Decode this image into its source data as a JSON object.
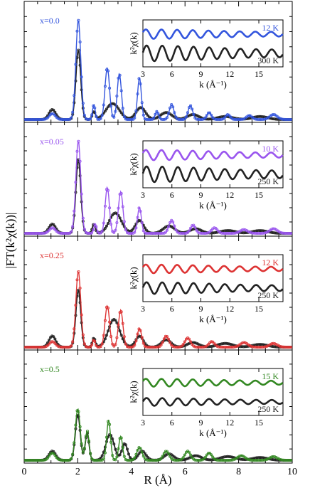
{
  "figure": {
    "ylabel": "|FT(k²χ(k))|",
    "xlabel": "R (Å)",
    "inset_ylabel": "k²χ(k)",
    "inset_xlabel": "k (Å⁻¹)"
  },
  "chart_data": [
    {
      "type": "line",
      "panel": "x=0.0",
      "label": "x=0.0",
      "color": "#3355dd",
      "xlim": [
        0,
        10
      ],
      "xticks": [
        0,
        2,
        4,
        6,
        8,
        10
      ],
      "series": [
        {
          "role": "low-T",
          "color": "#3355dd",
          "peaks": [
            [
              1.05,
              0.06,
              0.16
            ],
            [
              2.02,
              1.0,
              0.13
            ],
            [
              2.6,
              0.15,
              0.07
            ],
            [
              3.1,
              0.52,
              0.12
            ],
            [
              3.55,
              0.46,
              0.11
            ],
            [
              4.3,
              0.42,
              0.1
            ],
            [
              4.95,
              0.08,
              0.09
            ],
            [
              5.5,
              0.15,
              0.12
            ],
            [
              6.2,
              0.14,
              0.12
            ],
            [
              6.9,
              0.07,
              0.12
            ],
            [
              7.6,
              0.05,
              0.12
            ],
            [
              8.4,
              0.04,
              0.15
            ],
            [
              9.3,
              0.05,
              0.2
            ]
          ]
        },
        {
          "role": "high-T",
          "color": "#222222",
          "peaks": [
            [
              1.05,
              0.1,
              0.18
            ],
            [
              2.02,
              0.7,
              0.13
            ],
            [
              2.6,
              0.08,
              0.08
            ],
            [
              3.3,
              0.16,
              0.35
            ],
            [
              4.35,
              0.12,
              0.25
            ],
            [
              5.3,
              0.07,
              0.3
            ],
            [
              6.3,
              0.05,
              0.3
            ],
            [
              7.5,
              0.03,
              0.4
            ],
            [
              8.8,
              0.03,
              0.4
            ]
          ]
        }
      ],
      "inset": {
        "xlabel": "k (Å⁻¹)",
        "ylabel": "k²χ(k)",
        "xticks": [
          3,
          6,
          9,
          12,
          15
        ],
        "xlim": [
          3,
          17.5
        ],
        "series": [
          {
            "name": "12 K",
            "color": "#3355dd",
            "amplitude": 0.6
          },
          {
            "name": "300 K",
            "color": "#222222",
            "amplitude": 1.0
          }
        ]
      }
    },
    {
      "type": "line",
      "panel": "x=0.05",
      "label": "x=0.05",
      "color": "#9955ee",
      "xlim": [
        0,
        10
      ],
      "xticks": [
        0,
        2,
        4,
        6,
        8,
        10
      ],
      "series": [
        {
          "role": "low-T",
          "color": "#9955ee",
          "peaks": [
            [
              1.05,
              0.06,
              0.16
            ],
            [
              2.02,
              1.0,
              0.13
            ],
            [
              2.65,
              0.1,
              0.07
            ],
            [
              3.1,
              0.5,
              0.11
            ],
            [
              3.6,
              0.45,
              0.12
            ],
            [
              4.3,
              0.28,
              0.1
            ],
            [
              5.5,
              0.14,
              0.14
            ],
            [
              6.3,
              0.09,
              0.13
            ],
            [
              7.1,
              0.06,
              0.15
            ],
            [
              8.2,
              0.04,
              0.2
            ],
            [
              9.3,
              0.05,
              0.2
            ]
          ]
        },
        {
          "role": "high-T",
          "color": "#222222",
          "peaks": [
            [
              1.05,
              0.1,
              0.18
            ],
            [
              2.02,
              0.8,
              0.13
            ],
            [
              2.6,
              0.1,
              0.08
            ],
            [
              3.4,
              0.22,
              0.32
            ],
            [
              4.3,
              0.14,
              0.22
            ],
            [
              5.4,
              0.08,
              0.3
            ],
            [
              6.4,
              0.05,
              0.3
            ],
            [
              7.6,
              0.03,
              0.4
            ],
            [
              8.8,
              0.03,
              0.4
            ]
          ]
        }
      ],
      "inset": {
        "xlabel": "k (Å⁻¹)",
        "ylabel": "k²χ(k)",
        "xticks": [
          3,
          6,
          9,
          12,
          15
        ],
        "xlim": [
          3,
          17.5
        ],
        "series": [
          {
            "name": "10 K",
            "color": "#9955ee",
            "amplitude": 0.65
          },
          {
            "name": "250 K",
            "color": "#222222",
            "amplitude": 1.0
          }
        ]
      }
    },
    {
      "type": "line",
      "panel": "x=0.25",
      "label": "x=0.25",
      "color": "#dd3333",
      "xlim": [
        0,
        10
      ],
      "xticks": [
        0,
        2,
        4,
        6,
        8,
        10
      ],
      "series": [
        {
          "role": "low-T",
          "color": "#dd3333",
          "peaks": [
            [
              1.05,
              0.06,
              0.16
            ],
            [
              2.02,
              0.82,
              0.13
            ],
            [
              2.6,
              0.08,
              0.07
            ],
            [
              3.1,
              0.45,
              0.12
            ],
            [
              3.6,
              0.4,
              0.12
            ],
            [
              4.3,
              0.2,
              0.12
            ],
            [
              5.3,
              0.12,
              0.15
            ],
            [
              6.1,
              0.1,
              0.15
            ],
            [
              7.0,
              0.06,
              0.15
            ],
            [
              8.2,
              0.05,
              0.2
            ],
            [
              9.3,
              0.04,
              0.2
            ]
          ]
        },
        {
          "role": "high-T",
          "color": "#222222",
          "peaks": [
            [
              1.05,
              0.12,
              0.18
            ],
            [
              2.02,
              0.62,
              0.13
            ],
            [
              2.6,
              0.1,
              0.08
            ],
            [
              3.35,
              0.3,
              0.3
            ],
            [
              4.3,
              0.12,
              0.2
            ],
            [
              5.3,
              0.08,
              0.25
            ],
            [
              6.3,
              0.05,
              0.3
            ],
            [
              7.5,
              0.04,
              0.4
            ],
            [
              8.8,
              0.03,
              0.4
            ]
          ]
        }
      ],
      "inset": {
        "xlabel": "k (Å⁻¹)",
        "ylabel": "k²χ(k)",
        "xticks": [
          3,
          6,
          9,
          12,
          15
        ],
        "xlim": [
          3,
          17.5
        ],
        "series": [
          {
            "name": "12 K",
            "color": "#dd3333",
            "amplitude": 0.55
          },
          {
            "name": "250 K",
            "color": "#222222",
            "amplitude": 0.75
          }
        ]
      }
    },
    {
      "type": "line",
      "panel": "x=0.5",
      "label": "x=0.5",
      "color": "#338822",
      "xlim": [
        0,
        10
      ],
      "xticks": [
        0,
        2,
        4,
        6,
        8,
        10
      ],
      "series": [
        {
          "role": "low-T",
          "color": "#338822",
          "peaks": [
            [
              1.05,
              0.08,
              0.16
            ],
            [
              2.0,
              0.56,
              0.13
            ],
            [
              2.35,
              0.32,
              0.1
            ],
            [
              3.15,
              0.44,
              0.1
            ],
            [
              3.6,
              0.26,
              0.1
            ],
            [
              4.3,
              0.14,
              0.14
            ],
            [
              5.3,
              0.1,
              0.15
            ],
            [
              6.1,
              0.1,
              0.15
            ],
            [
              6.9,
              0.08,
              0.15
            ],
            [
              8.1,
              0.05,
              0.2
            ],
            [
              9.3,
              0.04,
              0.2
            ]
          ]
        },
        {
          "role": "high-T",
          "color": "#222222",
          "peaks": [
            [
              1.05,
              0.1,
              0.18
            ],
            [
              2.0,
              0.5,
              0.13
            ],
            [
              2.35,
              0.3,
              0.1
            ],
            [
              3.2,
              0.28,
              0.22
            ],
            [
              3.75,
              0.18,
              0.15
            ],
            [
              4.4,
              0.1,
              0.2
            ],
            [
              5.4,
              0.07,
              0.25
            ],
            [
              6.4,
              0.05,
              0.3
            ],
            [
              7.6,
              0.04,
              0.4
            ],
            [
              8.8,
              0.03,
              0.4
            ]
          ]
        }
      ],
      "inset": {
        "xlabel": "k (Å⁻¹)",
        "ylabel": "k²χ(k)",
        "xticks": [
          3,
          6,
          9,
          12,
          15
        ],
        "xlim": [
          3,
          17.5
        ],
        "series": [
          {
            "name": "15 K",
            "color": "#338822",
            "amplitude": 0.5
          },
          {
            "name": "250 K",
            "color": "#222222",
            "amplitude": 0.5
          }
        ]
      }
    }
  ]
}
